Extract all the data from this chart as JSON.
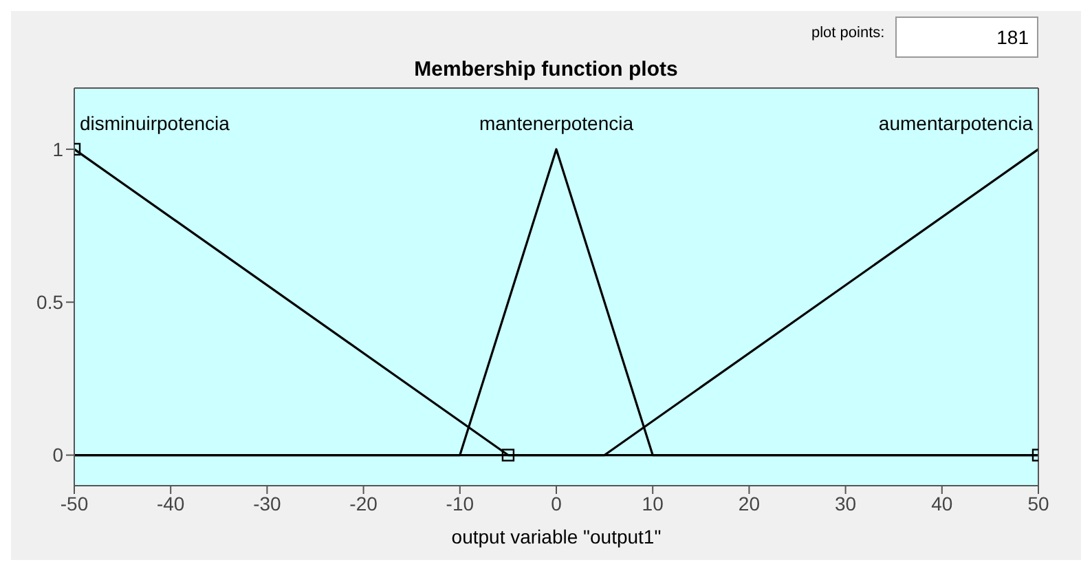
{
  "chart_data": {
    "type": "line",
    "title": "Membership function plots",
    "xlabel": "output variable \"output1\"",
    "annotations": [
      "plot points:",
      "181"
    ],
    "xlim": [
      -50,
      50
    ],
    "xticks": [
      -50,
      -40,
      -30,
      -20,
      -10,
      0,
      10,
      20,
      30,
      40,
      50
    ],
    "ylim": [
      -0.1,
      1.2
    ],
    "yticks": [
      0,
      0.5,
      1
    ],
    "grid": false,
    "legend": false,
    "marker": "none",
    "line_style": "solid",
    "series": [
      {
        "name": "disminuirpotencia",
        "color": "#000000",
        "marker": "square",
        "x": [
          -50,
          -5,
          50
        ],
        "values": [
          1,
          0,
          0
        ]
      },
      {
        "name": "mantenerpotencia",
        "color": "#000000",
        "x": [
          -50,
          -10,
          0,
          10,
          50
        ],
        "values": [
          0,
          0,
          1,
          0,
          0
        ]
      },
      {
        "name": "aumentarpotencia",
        "color": "#000000",
        "x": [
          -50,
          5,
          50
        ],
        "values": [
          0,
          0,
          1
        ]
      }
    ]
  }
}
